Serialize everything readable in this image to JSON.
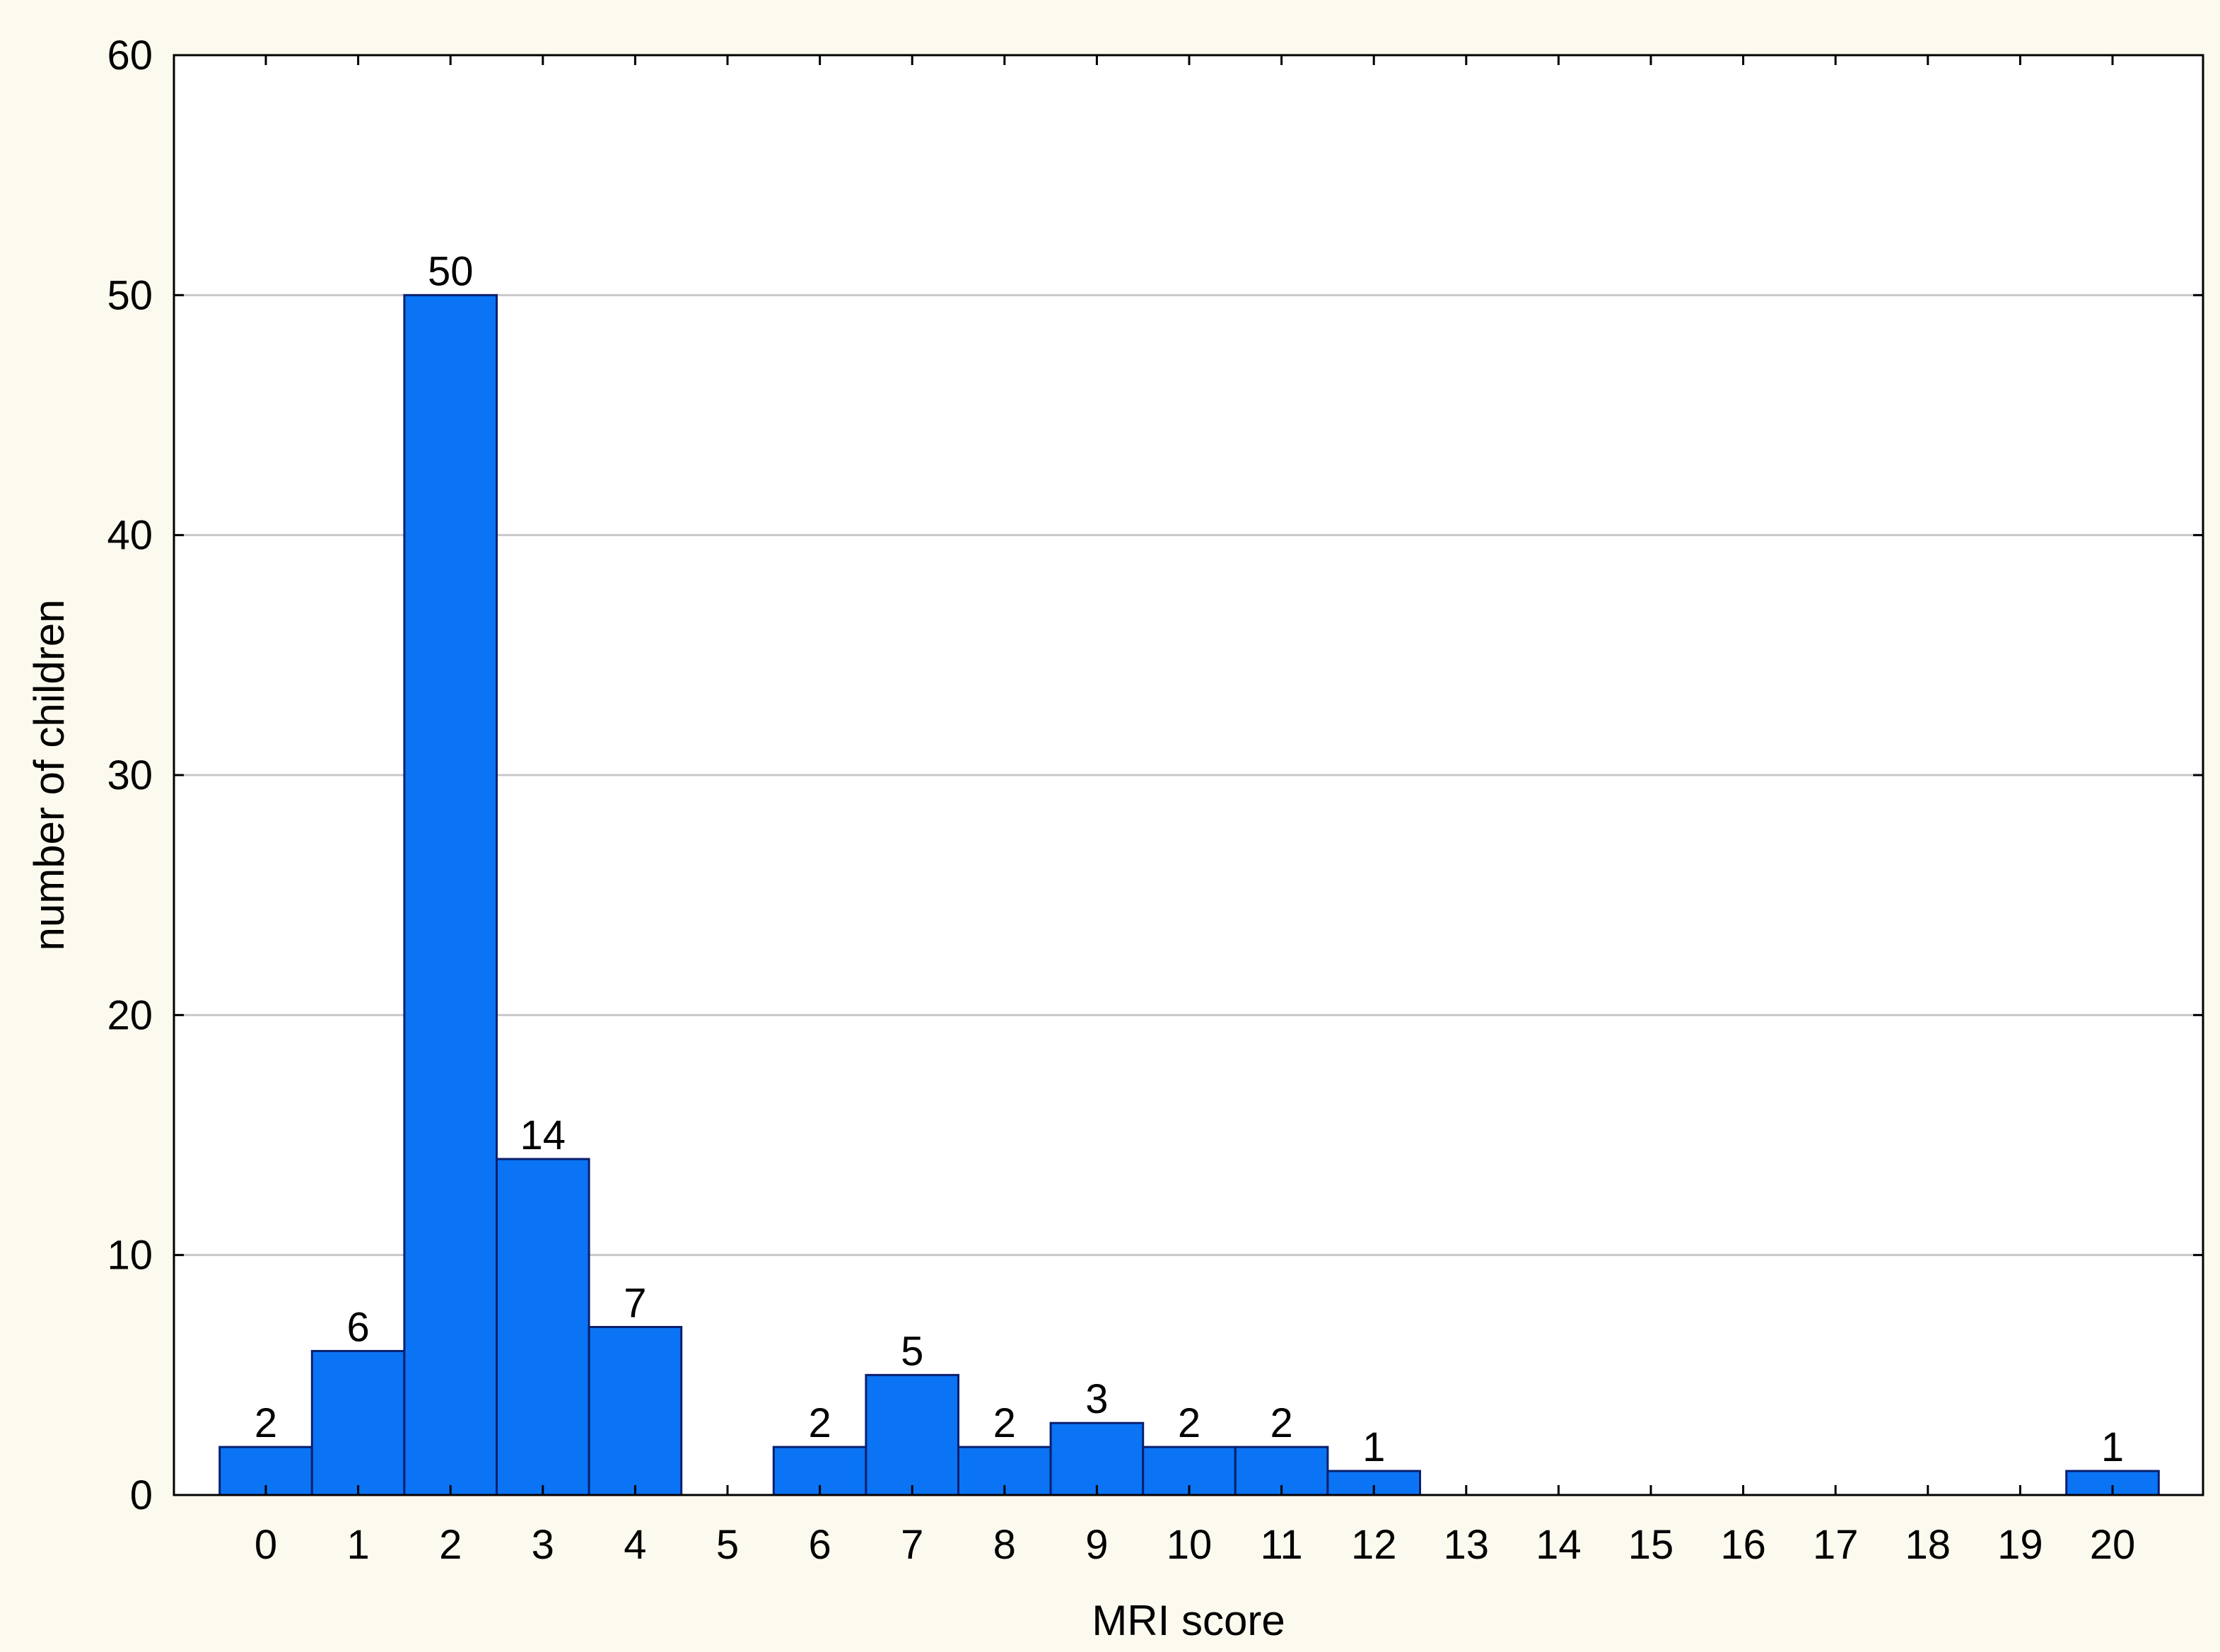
{
  "chart_data": {
    "type": "bar",
    "title": "",
    "xlabel": "MRI score",
    "ylabel": "number of children",
    "categories": [
      "0",
      "1",
      "2",
      "3",
      "4",
      "5",
      "6",
      "7",
      "8",
      "9",
      "10",
      "11",
      "12",
      "13",
      "14",
      "15",
      "16",
      "17",
      "18",
      "19",
      "20"
    ],
    "values": [
      2,
      6,
      50,
      14,
      7,
      0,
      2,
      5,
      2,
      3,
      2,
      2,
      1,
      0,
      0,
      0,
      0,
      0,
      0,
      0,
      1
    ],
    "data_labels": [
      "2",
      "6",
      "50",
      "14",
      "7",
      "",
      "2",
      "5",
      "2",
      "3",
      "2",
      "2",
      "1",
      "",
      "",
      "",
      "",
      "",
      "",
      "",
      "1"
    ],
    "ylim": [
      0,
      60
    ],
    "yticks": [
      "0",
      "10",
      "20",
      "30",
      "40",
      "50",
      "60"
    ],
    "grid": "horizontal",
    "legend": "none",
    "colors": {
      "bar_fill": "#0a74f4",
      "bar_stroke": "#0a1f6e",
      "grid": "#c8c8c8",
      "plot_background": "#ffffff",
      "page_background": "#fcfaee"
    }
  }
}
